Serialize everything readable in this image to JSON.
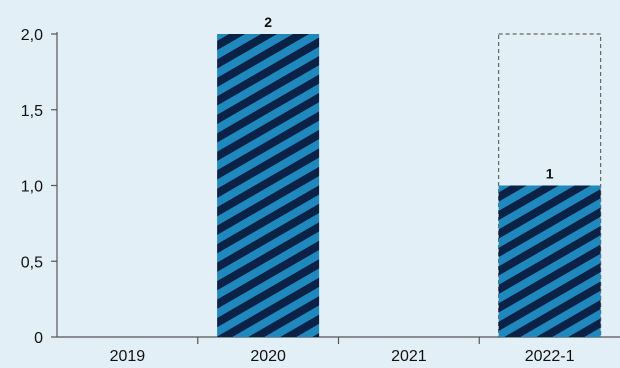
{
  "chart_data": {
    "type": "bar",
    "categories": [
      "2019",
      "2020",
      "2021",
      "2022-1"
    ],
    "values": [
      0,
      2,
      0,
      1
    ],
    "data_labels": [
      "",
      "2",
      "",
      "1"
    ],
    "reference_outline": {
      "category": "2022-1",
      "value": 2,
      "style": "dashed"
    },
    "ylim": [
      0,
      2
    ],
    "yticks": [
      0,
      0.5,
      1.0,
      1.5,
      2.0
    ],
    "ytick_labels": [
      "0",
      "0,5",
      "1,0",
      "1,5",
      "2,0"
    ],
    "title": "",
    "xlabel": "",
    "ylabel": "",
    "grid": false,
    "bar_pattern": "diagonal-stripes",
    "colors": {
      "stripe_dark": "#0b2145",
      "stripe_light": "#1f88bd",
      "background": "#e3eff6",
      "axis": "#555555",
      "dashed_outline": "#666666"
    }
  }
}
